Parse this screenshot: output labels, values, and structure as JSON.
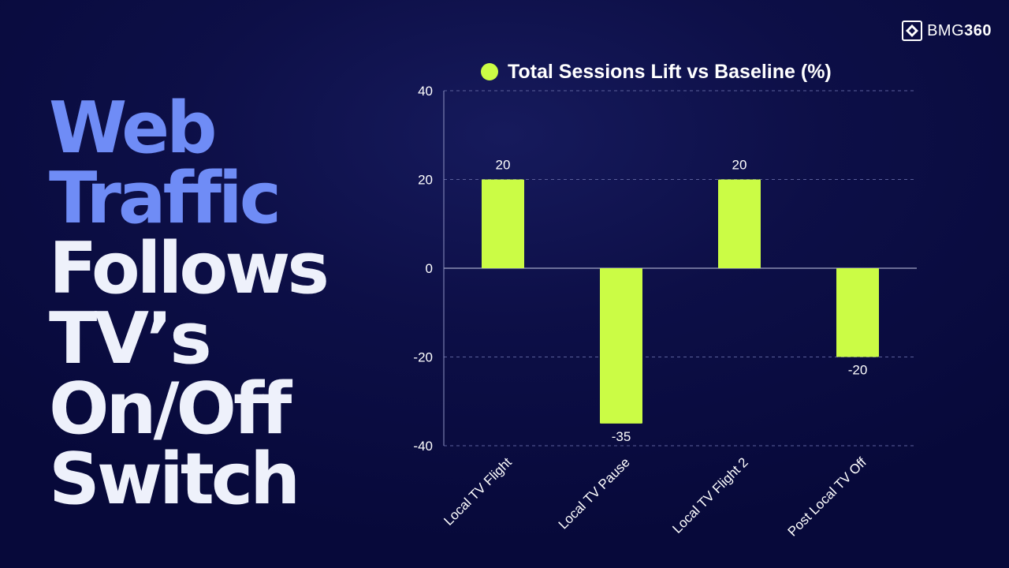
{
  "headline": {
    "lines": [
      {
        "text": "Web",
        "accent": true
      },
      {
        "text": "Traffic",
        "accent": true
      },
      {
        "text": "Follows",
        "accent": false
      },
      {
        "text": "TV’s",
        "accent": false
      },
      {
        "text": "On/Off",
        "accent": false
      },
      {
        "text": "Switch",
        "accent": false
      }
    ]
  },
  "brand": {
    "prefix": "BMG",
    "suffix": "360",
    "icon": "bmg360-logo-icon"
  },
  "colors": {
    "bar": "#cbfc45",
    "accent_text": "#6f8cf6",
    "background": "#0d0f47",
    "gridline": "#5a5f9a"
  },
  "chart_data": {
    "type": "bar",
    "title": "",
    "xlabel": "",
    "ylabel": "",
    "categories": [
      "Local TV Flight",
      "Local TV Pause",
      "Local TV Flight 2",
      "Post Local TV Off"
    ],
    "series": [
      {
        "name": "Total Sessions Lift vs Baseline (%)",
        "values": [
          20,
          -35,
          20,
          -20
        ]
      }
    ],
    "data_labels": [
      "20",
      "-35",
      "20",
      "-20"
    ],
    "ylim": [
      -40,
      40
    ],
    "yticks": [
      40,
      20,
      0,
      -20,
      -40
    ],
    "grid": "dashed-horizontal",
    "legend_position": "top",
    "xtick_rotation": -45
  }
}
